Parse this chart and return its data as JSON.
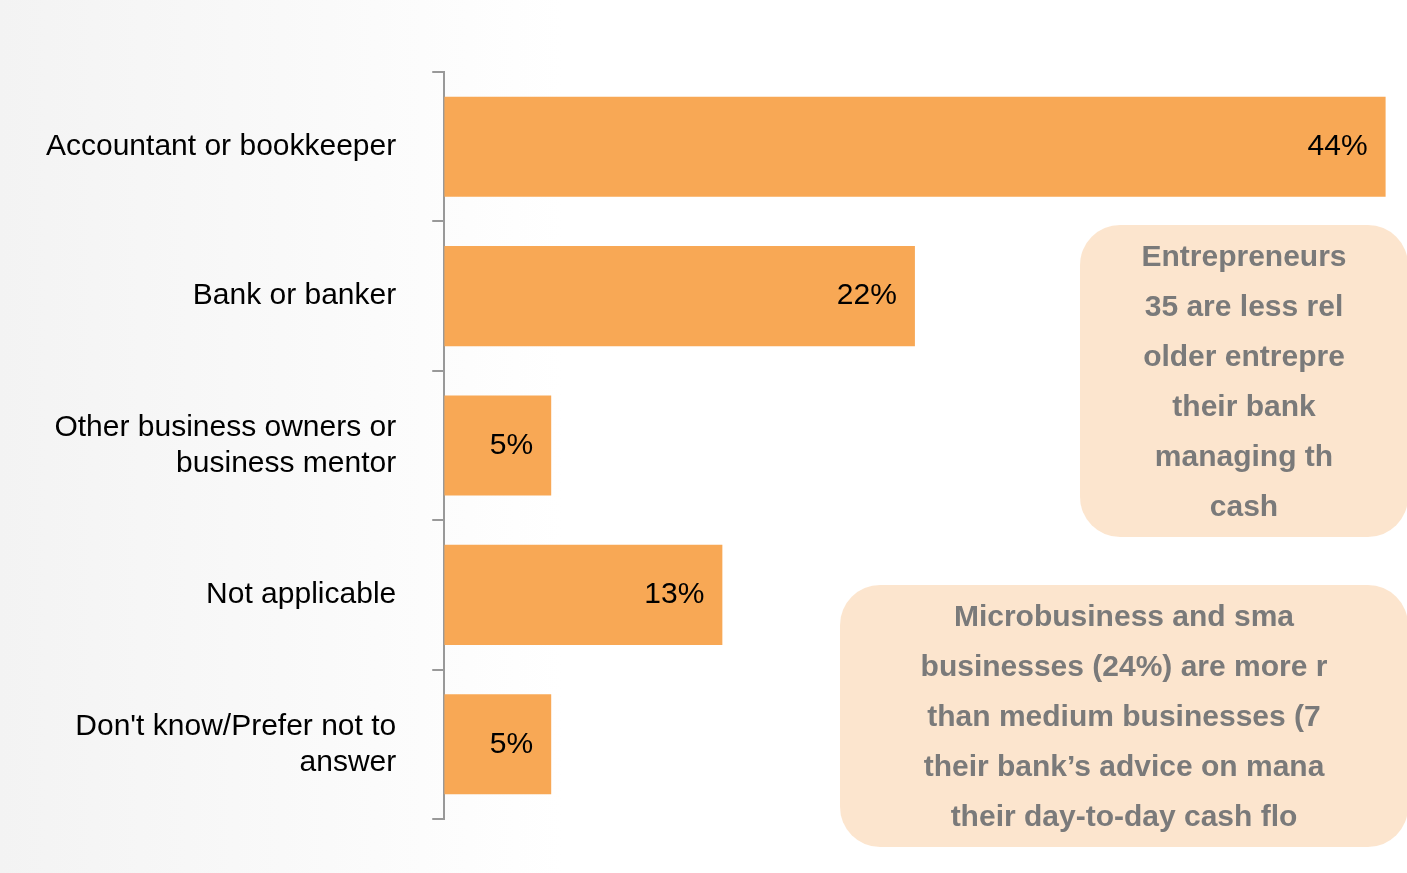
{
  "chart_data": {
    "type": "bar",
    "orientation": "horizontal",
    "categories": [
      "Accountant or bookkeeper",
      "Bank or banker",
      "Other business owners or business mentor",
      "Not applicable",
      "Don't know/Prefer not to answer"
    ],
    "values": [
      44,
      22,
      5,
      13,
      5
    ],
    "value_labels": [
      "44%",
      "22%",
      "5%",
      "13%",
      "5%"
    ],
    "color": "#f8a855",
    "annotations": [
      "Entrepreneurs\n35 are less rel\nolder entrepre\ntheir bank\nmanaging th\ncash",
      "Microbusiness and sma\nbusinesses (24%) are more r\nthan medium businesses (7\ntheir bank’s advice on mana\ntheir day-to-day cash flo"
    ]
  }
}
